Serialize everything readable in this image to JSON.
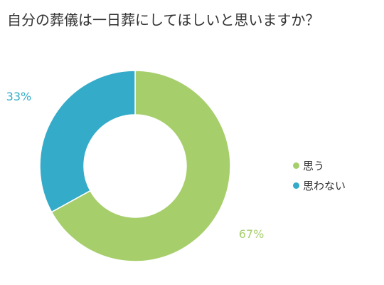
{
  "title": "自分の葬儀は一日葬にしてほしいと思いますか？",
  "chart_data": {
    "type": "pie",
    "donut": true,
    "title": "自分の葬儀は一日葬にしてほしいと思いますか？",
    "legend_position": "right",
    "slices": [
      {
        "label": "思う",
        "value": 67,
        "display": "67%",
        "color": "#a6ce6b"
      },
      {
        "label": "思わない",
        "value": 33,
        "display": "33%",
        "color": "#33abc9"
      }
    ]
  }
}
